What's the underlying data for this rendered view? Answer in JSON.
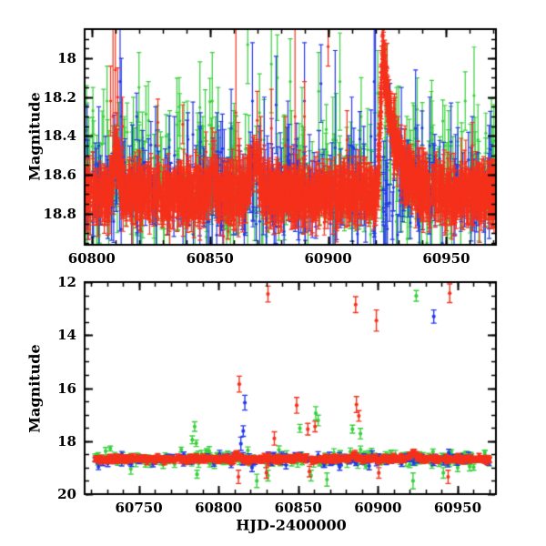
{
  "figure": {
    "background": "#ffffff",
    "seed": 97531
  },
  "colors": {
    "red": "#f5311b",
    "green": "#37d03c",
    "blue": "#2439e8"
  },
  "chart_data": [
    {
      "panel": "top",
      "type": "scatter",
      "title": "",
      "ylabel": "Magnitude",
      "xlabel": "",
      "xlim": [
        60797,
        60971
      ],
      "ylim": [
        17.85,
        18.96
      ],
      "x_ticks": [
        60800,
        60850,
        60900,
        60950
      ],
      "x_minor_step": 10,
      "y_ticks": [
        18,
        18.2,
        18.4,
        18.6,
        18.8
      ],
      "y_tick_labels": [
        "18",
        "18.2",
        "18.4",
        "18.6",
        "18.8"
      ],
      "y_minor_step": 0.05,
      "grid": false,
      "legend": null,
      "series": [
        {
          "name": "green-band",
          "color": "green",
          "n": 300,
          "baseline": 18.63,
          "scatter": 0.14,
          "err_min": 0.1,
          "err_max": 0.26,
          "x_start": 60797.5,
          "x_end": 60970.5
        },
        {
          "name": "blue-band",
          "color": "blue",
          "n": 300,
          "baseline": 18.67,
          "scatter": 0.12,
          "err_min": 0.08,
          "err_max": 0.2,
          "x_start": 60797.5,
          "x_end": 60970.5
        },
        {
          "name": "red-band",
          "color": "red",
          "n": 1900,
          "baseline": 18.7,
          "scatter": 0.055,
          "err_min": 0.04,
          "err_max": 0.12,
          "x_start": 60797.5,
          "x_end": 60970.5
        }
      ],
      "features": {
        "flare": {
          "applies_to": "red",
          "rise_start": 60921,
          "x_peak": 60923,
          "amplitude": 0.75,
          "decay_tau": 5.5,
          "extra": {
            "n": 140,
            "x_start": 60921.3,
            "x_end": 60941,
            "power": 2,
            "err": 0.06,
            "scatter": 0.05
          }
        },
        "bumps": [
          {
            "applies_to": "red",
            "x": 60810.5,
            "amp": 0.22,
            "sigma": 1.2
          },
          {
            "applies_to": "red",
            "x": 60851.5,
            "amp": 0.12,
            "sigma": 1.0
          },
          {
            "applies_to": "red",
            "x": 60869,
            "amp": 0.18,
            "sigma": 2.0
          }
        ]
      },
      "spikes_xye": {
        "green": [
          [
            60800.5,
            18.27,
            0.12
          ],
          [
            60805,
            18.3,
            0.14
          ],
          [
            60806.5,
            18.22,
            0.18
          ],
          [
            60815,
            18.38,
            0.15
          ],
          [
            60820,
            18.15,
            0.18
          ],
          [
            60824,
            18.32,
            0.2
          ],
          [
            60833,
            18.42,
            0.15
          ],
          [
            60837,
            18.25,
            0.15
          ],
          [
            60840.5,
            18.4,
            0.18
          ],
          [
            60847,
            18.45,
            0.15
          ],
          [
            60851,
            18.22,
            0.25
          ],
          [
            60853.5,
            18.35,
            0.2
          ],
          [
            60860,
            18.45,
            0.18
          ],
          [
            60866,
            17.93,
            0.2
          ],
          [
            60871,
            18.28,
            0.2
          ],
          [
            60876,
            18.03,
            0.25
          ],
          [
            60878.5,
            18.1,
            0.22
          ],
          [
            60884,
            18.12,
            0.22
          ],
          [
            60889,
            18.35,
            0.2
          ],
          [
            60896,
            18.17,
            0.2
          ],
          [
            60902,
            18.42,
            0.22
          ],
          [
            60905,
            18.12,
            0.25
          ],
          [
            60914,
            18.3,
            0.2
          ],
          [
            60921,
            18.18,
            0.22
          ],
          [
            60924.5,
            18.13,
            0.2
          ],
          [
            60929,
            18.35,
            0.2
          ],
          [
            60936,
            18.45,
            0.22
          ],
          [
            60944,
            18.42,
            0.2
          ],
          [
            60951,
            18.45,
            0.18
          ],
          [
            60958,
            18.22,
            0.15
          ]
        ],
        "blue": [
          [
            60798,
            18.42,
            0.18
          ],
          [
            60803,
            18.45,
            0.2
          ],
          [
            60812,
            18.12,
            0.6
          ],
          [
            60812.5,
            18.3,
            0.3
          ],
          [
            60819,
            18.3,
            0.12
          ],
          [
            60827,
            18.45,
            0.2
          ],
          [
            60835,
            18.5,
            0.2
          ],
          [
            60846,
            18.43,
            0.15
          ],
          [
            60853,
            18.48,
            0.2
          ],
          [
            60859,
            18.36,
            0.2
          ],
          [
            60868,
            18.22,
            0.3
          ],
          [
            60873,
            18.45,
            0.25
          ],
          [
            60878,
            18.24,
            0.25
          ],
          [
            60883,
            18.42,
            0.2
          ],
          [
            60890,
            18.22,
            0.3
          ],
          [
            60897,
            18.13,
            0.2
          ],
          [
            60903,
            18.46,
            0.5
          ],
          [
            60910,
            18.45,
            0.25
          ],
          [
            60919.5,
            18.12,
            0.8
          ],
          [
            60920,
            18.42,
            0.6
          ],
          [
            60931,
            18.4,
            0.25
          ],
          [
            60937,
            18.36,
            0.3
          ],
          [
            60943,
            18.45,
            0.25
          ],
          [
            60952,
            18.43,
            0.2
          ],
          [
            60961,
            18.5,
            0.2
          ]
        ],
        "red": [
          [
            60808,
            18.22,
            0.18
          ],
          [
            60809,
            18.3,
            0.5
          ],
          [
            60810,
            18.06,
            0.22
          ],
          [
            60811,
            18.2,
            0.15
          ],
          [
            60813,
            18.35,
            0.15
          ],
          [
            60828,
            18.33,
            0.12
          ],
          [
            60838.5,
            18.34,
            0.1
          ],
          [
            60852,
            18.5,
            0.12
          ],
          [
            60861,
            18.28,
            0.5
          ],
          [
            60862,
            18.45,
            0.12
          ],
          [
            60870,
            18.32,
            0.15
          ],
          [
            60871.5,
            18.42,
            0.12
          ],
          [
            60876,
            18.36,
            0.2
          ],
          [
            60882,
            18.45,
            0.15
          ],
          [
            60886,
            18.3,
            0.5
          ],
          [
            60890,
            18.3,
            0.18
          ],
          [
            60900,
            17.94,
            0.1
          ],
          [
            60908,
            18.42,
            0.15
          ],
          [
            60961,
            18.45,
            0.12
          ]
        ]
      }
    },
    {
      "panel": "bottom",
      "type": "scatter",
      "title": "",
      "ylabel": "Magnitude",
      "xlabel": "HJD-2400000",
      "xlim": [
        60716,
        60974
      ],
      "ylim": [
        12,
        20
      ],
      "x_ticks": [
        60750,
        60800,
        60850,
        60900,
        60950
      ],
      "x_minor_step": 10,
      "y_ticks": [
        12,
        14,
        16,
        18,
        20
      ],
      "y_tick_labels": [
        "12",
        "14",
        "16",
        "18",
        "20"
      ],
      "y_minor_step": 0.5,
      "grid": false,
      "legend": null,
      "series": [
        {
          "name": "green-band",
          "color": "green",
          "n": 220,
          "baseline": 18.66,
          "scatter": 0.13,
          "err_min": 0.07,
          "err_max": 0.18,
          "x_start": 60722,
          "x_end": 60970
        },
        {
          "name": "blue-band",
          "color": "blue",
          "n": 150,
          "baseline": 18.68,
          "scatter": 0.1,
          "err_min": 0.06,
          "err_max": 0.15,
          "x_start": 60722,
          "x_end": 60970
        },
        {
          "name": "red-band",
          "color": "red",
          "n": 850,
          "baseline": 18.68,
          "scatter": 0.055,
          "err_min": 0.04,
          "err_max": 0.1,
          "x_start": 60722,
          "x_end": 60970
        }
      ],
      "features": {
        "bumps": [
          {
            "applies_to": "red",
            "x": 60922,
            "amp": 0.25,
            "sigma": 2.0
          },
          {
            "applies_to": "red",
            "x": 60885,
            "amp": 0.15,
            "sigma": 1.5
          },
          {
            "applies_to": "red",
            "x": 60850,
            "amp": 0.12,
            "sigma": 1.0
          },
          {
            "applies_to": "red",
            "x": 60812,
            "amp": 0.15,
            "sigma": 1.5
          }
        ]
      },
      "outliers": [
        {
          "color": "red",
          "x": 60813,
          "mag": 15.85,
          "err": 0.3
        },
        {
          "color": "red",
          "x": 60831,
          "mag": 12.45,
          "err": 0.3
        },
        {
          "color": "red",
          "x": 60835,
          "mag": 17.9,
          "err": 0.25
        },
        {
          "color": "red",
          "x": 60849,
          "mag": 16.65,
          "err": 0.3
        },
        {
          "color": "red",
          "x": 60856,
          "mag": 17.55,
          "err": 0.22
        },
        {
          "color": "red",
          "x": 60860.5,
          "mag": 17.45,
          "err": 0.2
        },
        {
          "color": "red",
          "x": 60886,
          "mag": 12.85,
          "err": 0.3
        },
        {
          "color": "red",
          "x": 60886.5,
          "mag": 16.62,
          "err": 0.3
        },
        {
          "color": "red",
          "x": 60888,
          "mag": 17.05,
          "err": 0.2
        },
        {
          "color": "red",
          "x": 60899,
          "mag": 13.45,
          "err": 0.4
        },
        {
          "color": "red",
          "x": 60945,
          "mag": 12.42,
          "err": 0.35
        },
        {
          "color": "green",
          "x": 60783.5,
          "mag": 17.95,
          "err": 0.15
        },
        {
          "color": "green",
          "x": 60785,
          "mag": 17.45,
          "err": 0.18
        },
        {
          "color": "green",
          "x": 60786,
          "mag": 18.08,
          "err": 0.12
        },
        {
          "color": "green",
          "x": 60851,
          "mag": 17.52,
          "err": 0.15
        },
        {
          "color": "green",
          "x": 60861,
          "mag": 16.95,
          "err": 0.25
        },
        {
          "color": "green",
          "x": 60862.5,
          "mag": 17.22,
          "err": 0.2
        },
        {
          "color": "green",
          "x": 60884,
          "mag": 17.55,
          "err": 0.15
        },
        {
          "color": "green",
          "x": 60889,
          "mag": 17.72,
          "err": 0.2
        },
        {
          "color": "green",
          "x": 60924,
          "mag": 12.52,
          "err": 0.2
        },
        {
          "color": "blue",
          "x": 60814,
          "mag": 18.1,
          "err": 0.25
        },
        {
          "color": "blue",
          "x": 60815.5,
          "mag": 17.62,
          "err": 0.2
        },
        {
          "color": "blue",
          "x": 60816.5,
          "mag": 16.55,
          "err": 0.28
        },
        {
          "color": "blue",
          "x": 60935,
          "mag": 13.3,
          "err": 0.25
        },
        {
          "color": "green",
          "x": 60745,
          "mag": 19.05,
          "err": 0.2
        },
        {
          "color": "green",
          "x": 60786.5,
          "mag": 19.25,
          "err": 0.15
        },
        {
          "color": "green",
          "x": 60824,
          "mag": 19.5,
          "err": 0.25
        },
        {
          "color": "green",
          "x": 60831,
          "mag": 19.3,
          "err": 0.2
        },
        {
          "color": "green",
          "x": 60858,
          "mag": 19.3,
          "err": 0.2
        },
        {
          "color": "green",
          "x": 60868,
          "mag": 19.45,
          "err": 0.25
        },
        {
          "color": "green",
          "x": 60922,
          "mag": 19.5,
          "err": 0.3
        },
        {
          "color": "green",
          "x": 60941,
          "mag": 19.2,
          "err": 0.2
        },
        {
          "color": "green",
          "x": 60950,
          "mag": 19.0,
          "err": 0.15
        },
        {
          "color": "red",
          "x": 60812.5,
          "mag": 19.35,
          "err": 0.25
        },
        {
          "color": "red",
          "x": 60830,
          "mag": 19.2,
          "err": 0.2
        },
        {
          "color": "red",
          "x": 60857,
          "mag": 19.15,
          "err": 0.2
        },
        {
          "color": "red",
          "x": 60900.5,
          "mag": 19.2,
          "err": 0.2
        },
        {
          "color": "red",
          "x": 60944,
          "mag": 19.35,
          "err": 0.25
        },
        {
          "color": "blue",
          "x": 60821,
          "mag": 19.0,
          "err": 0.15
        },
        {
          "color": "blue",
          "x": 60876,
          "mag": 18.98,
          "err": 0.12
        }
      ]
    }
  ]
}
